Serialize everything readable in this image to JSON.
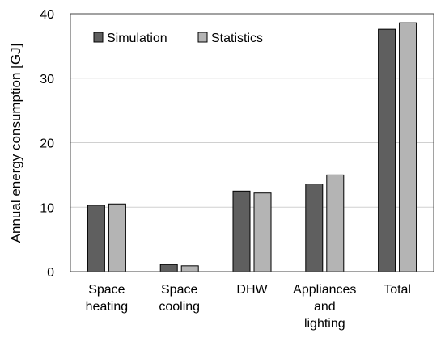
{
  "chart_data": {
    "type": "bar",
    "title": "",
    "xlabel": "",
    "ylabel": "Annual energy consumption [GJ]",
    "ylim": [
      0,
      40
    ],
    "yticks": [
      0,
      10,
      20,
      30,
      40
    ],
    "grid": true,
    "legend_position": "top-left",
    "categories": [
      [
        "Space",
        "heating"
      ],
      [
        "Space",
        "cooling"
      ],
      [
        "DHW"
      ],
      [
        "Appliances",
        "and",
        "lighting"
      ],
      [
        "Total"
      ]
    ],
    "series": [
      {
        "name": "Simulation",
        "color": "#5f5f5f",
        "values": [
          10.3,
          1.1,
          12.5,
          13.6,
          37.6
        ]
      },
      {
        "name": "Statistics",
        "color": "#b4b4b4",
        "values": [
          10.5,
          0.9,
          12.2,
          15.0,
          38.6
        ]
      }
    ]
  }
}
